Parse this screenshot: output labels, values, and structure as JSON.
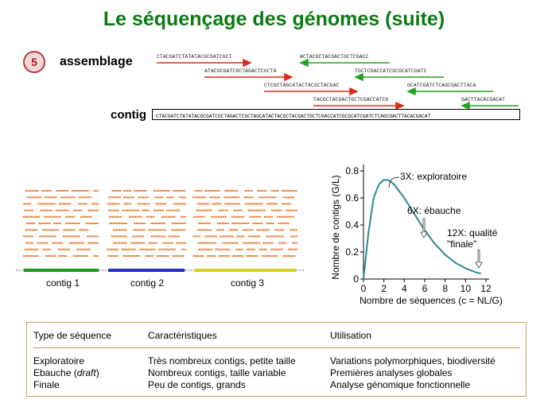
{
  "title": "Le séquençage des génomes (suite)",
  "step": {
    "number": "5",
    "label": "assemblage"
  },
  "colors": {
    "title": "#0a7a12",
    "forward": "#d92a1a",
    "reverse": "#21a121",
    "contig1": "#1a9a1a",
    "contig2": "#1f2fbf",
    "contig3": "#d8d020",
    "reads": "#e8620a",
    "curve": "#2a8a8a"
  },
  "reads": [
    {
      "text": "CTACGATCTATATACGCGATCGCT",
      "dir": "forward"
    },
    {
      "text": "ACTACGCTACGACTGCTCGACC",
      "dir": "reverse"
    },
    {
      "text": "ATACGCGATCGCTAGACTCGCTA",
      "dir": "forward"
    },
    {
      "text": "TGCTCGACCATCGCGCATCGATC",
      "dir": "reverse"
    },
    {
      "text": "CTCGCTAGCATACTACGCTACGAC",
      "dir": "forward"
    },
    {
      "text": "GCATCGATCTCAGCGACTTACA",
      "dir": "reverse"
    },
    {
      "text": "TACGCTACGACTGCTCGACCATCG",
      "dir": "forward"
    },
    {
      "text": "GACTTACACGACAT",
      "dir": "reverse"
    }
  ],
  "contig": {
    "label": "contig",
    "sequence": "CTACGATCTATATACGCGATCGCTAGACTCGCTAGCATACTACGCTACGACTGCTCGACCATCGCGCATCGATCTCAGCGACTTACACGACAT"
  },
  "contig_groups": [
    "contig 1",
    "contig 2",
    "contig 3"
  ],
  "chart_data": {
    "type": "line",
    "xlabel": "Nombre de séquences (c = NL/G)",
    "ylabel": "Nombre de contigs  (G/L)",
    "xlim": [
      0,
      12
    ],
    "ylim": [
      0,
      0.8
    ],
    "xticks": [
      "0",
      "2",
      "4",
      "6",
      "8",
      "10",
      "12"
    ],
    "yticks": [
      "0",
      "0.2",
      "0.4",
      "0.6",
      "0.8"
    ],
    "x": [
      0,
      0.5,
      1,
      1.5,
      2,
      2.5,
      3,
      4,
      5,
      6,
      7,
      8,
      9,
      10,
      11,
      11.5
    ],
    "y": [
      0,
      0.35,
      0.6,
      0.7,
      0.735,
      0.73,
      0.7,
      0.6,
      0.48,
      0.36,
      0.26,
      0.18,
      0.12,
      0.08,
      0.05,
      0.04
    ],
    "annotations": [
      {
        "text": "3X: exploratoire",
        "x": 3,
        "y": 0.7
      },
      {
        "text": "6X: ébauche",
        "x": 6,
        "y": 0.36
      },
      {
        "text": "12X: qualité",
        "x": 11.5,
        "y": 0.04
      },
      {
        "text": "\"finale\"",
        "x": 11.5,
        "y": 0.04
      }
    ]
  },
  "table": {
    "headers": [
      "Type de séquence",
      "Caractéristiques",
      "Utilisation"
    ],
    "rows": [
      [
        "Exploratoire",
        "Très nombreux contigs, petite taille",
        "Variations polymorphiques, biodiversité"
      ],
      [
        "Ebauche (",
        "draft",
        ")",
        "Nombreux contigs,  taille variable",
        "Premières analyses globales"
      ],
      [
        "Finale",
        "Peu de contigs, grands",
        "Analyse génomique fonctionnelle"
      ]
    ]
  }
}
